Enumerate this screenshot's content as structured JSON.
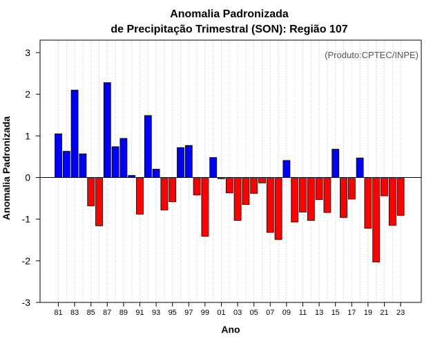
{
  "chart_data": {
    "type": "bar",
    "title": "Anomalia Padronizada",
    "subtitle": "de Precipitação Trimestral (SON): Região 107",
    "xlabel": "Ano",
    "ylabel": "Anomalia Padronizada",
    "credit": "(Produto:CPTEC/INPE)",
    "ylim": [
      -3,
      3.3
    ],
    "yticks": [
      -3,
      -2,
      -1,
      0,
      1,
      2,
      3
    ],
    "xticks": [
      "81",
      "83",
      "85",
      "87",
      "89",
      "91",
      "93",
      "95",
      "97",
      "99",
      "01",
      "03",
      "05",
      "07",
      "09",
      "11",
      "13",
      "15",
      "17",
      "19",
      "21",
      "23"
    ],
    "categories": [
      "1981",
      "1982",
      "1983",
      "1984",
      "1985",
      "1986",
      "1987",
      "1988",
      "1989",
      "1990",
      "1991",
      "1992",
      "1993",
      "1994",
      "1995",
      "1996",
      "1997",
      "1998",
      "1999",
      "2000",
      "2001",
      "2002",
      "2003",
      "2004",
      "2005",
      "2006",
      "2007",
      "2008",
      "2009",
      "2010",
      "2011",
      "2012",
      "2013",
      "2014",
      "2015",
      "2016",
      "2017",
      "2018",
      "2019",
      "2020",
      "2021",
      "2022",
      "2023"
    ],
    "values": [
      1.05,
      0.63,
      2.1,
      0.57,
      -0.68,
      -1.16,
      2.28,
      0.74,
      0.94,
      0.05,
      -0.88,
      1.49,
      0.2,
      -0.78,
      -0.58,
      0.72,
      0.77,
      -0.42,
      -1.41,
      0.48,
      -0.03,
      -0.37,
      -1.03,
      -0.65,
      -0.38,
      -0.13,
      -1.32,
      -1.49,
      0.41,
      -1.07,
      -0.83,
      -1.03,
      -0.53,
      -0.84,
      0.68,
      -0.96,
      -0.52,
      0.47,
      -1.22,
      -2.03,
      -0.44,
      -1.15,
      -0.91
    ],
    "colors": {
      "positive": "#0000ff",
      "negative": "#ff0000",
      "zero_line": "#000000",
      "grid": "#d9d9d9"
    },
    "grid": true
  }
}
